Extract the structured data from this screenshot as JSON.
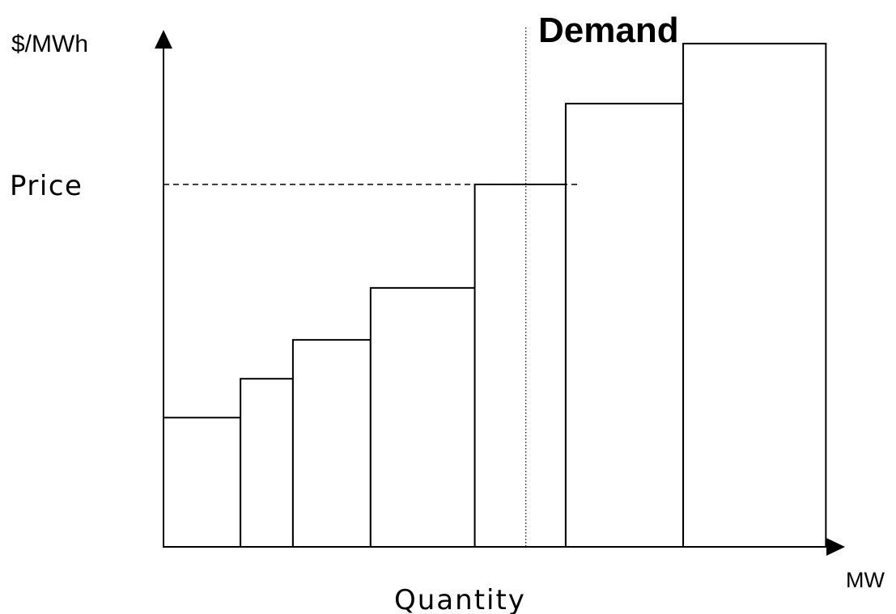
{
  "chart_data": {
    "type": "bar",
    "ylabel": "$/MWh",
    "xlabel_unit": "MW",
    "xlabel": "Quantity",
    "demand_label": "Demand",
    "price_label": "Price",
    "ticks": "none",
    "grid": false,
    "legend": "none",
    "y_units": "relative (axis origin = 0, axis top = 100)",
    "ylim": [
      0,
      100
    ],
    "xlim": [
      0,
      100
    ],
    "steps": [
      {
        "x_start": 0.0,
        "x_end": 11.6,
        "value": 25.6
      },
      {
        "x_start": 11.6,
        "x_end": 19.5,
        "value": 33.3
      },
      {
        "x_start": 19.5,
        "x_end": 31.2,
        "value": 41.0
      },
      {
        "x_start": 31.2,
        "x_end": 46.9,
        "value": 51.3
      },
      {
        "x_start": 46.9,
        "x_end": 60.6,
        "value": 71.8
      },
      {
        "x_start": 60.6,
        "x_end": 78.3,
        "value": 87.8
      },
      {
        "x_start": 78.3,
        "x_end": 99.8,
        "value": 99.7
      }
    ],
    "price_level": 71.8,
    "price_line_x_end": 62.9,
    "demand_quantity": 54.6
  },
  "colors": {
    "axis": "#000000",
    "bars_stroke": "#000000",
    "bars_fill": "#ffffff",
    "background": "#ffffff"
  }
}
